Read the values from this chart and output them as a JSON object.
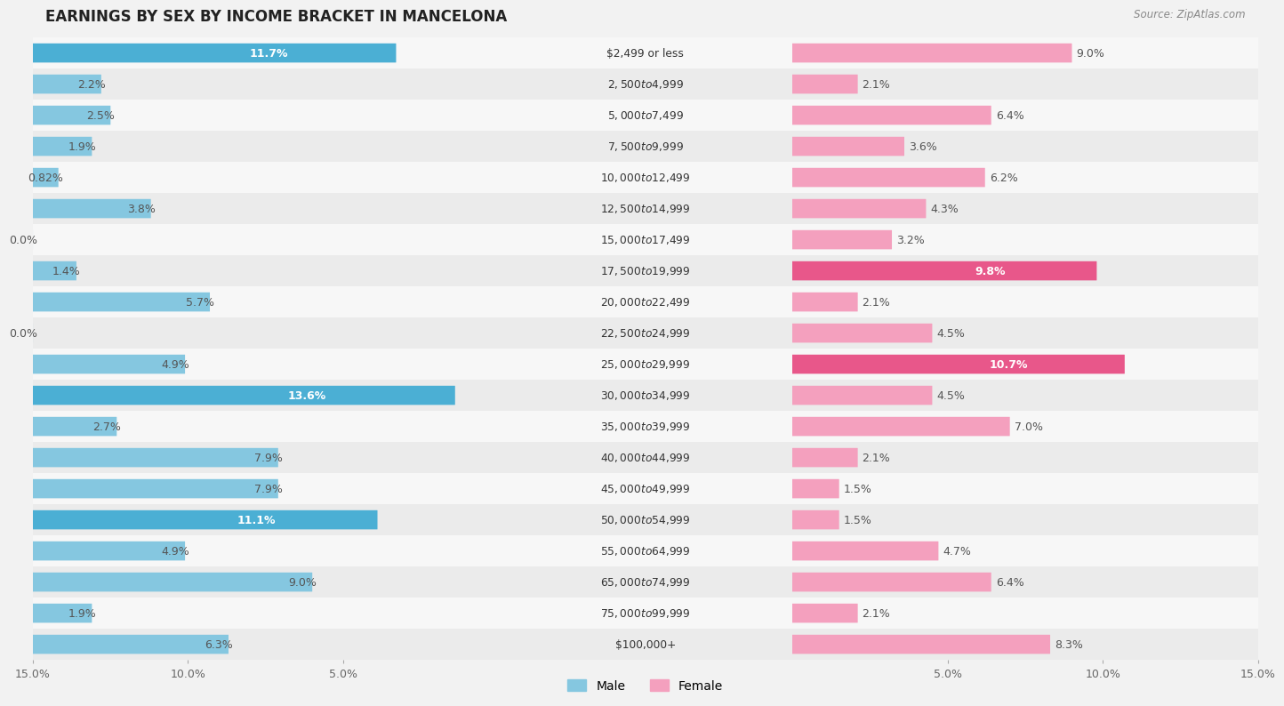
{
  "title": "EARNINGS BY SEX BY INCOME BRACKET IN MANCELONA",
  "source": "Source: ZipAtlas.com",
  "categories": [
    "$2,499 or less",
    "$2,500 to $4,999",
    "$5,000 to $7,499",
    "$7,500 to $9,999",
    "$10,000 to $12,499",
    "$12,500 to $14,999",
    "$15,000 to $17,499",
    "$17,500 to $19,999",
    "$20,000 to $22,499",
    "$22,500 to $24,999",
    "$25,000 to $29,999",
    "$30,000 to $34,999",
    "$35,000 to $39,999",
    "$40,000 to $44,999",
    "$45,000 to $49,999",
    "$50,000 to $54,999",
    "$55,000 to $64,999",
    "$65,000 to $74,999",
    "$75,000 to $99,999",
    "$100,000+"
  ],
  "male_values": [
    11.7,
    2.2,
    2.5,
    1.9,
    0.82,
    3.8,
    0.0,
    1.4,
    5.7,
    0.0,
    4.9,
    13.6,
    2.7,
    7.9,
    7.9,
    11.1,
    4.9,
    9.0,
    1.9,
    6.3
  ],
  "female_values": [
    9.0,
    2.1,
    6.4,
    3.6,
    6.2,
    4.3,
    3.2,
    9.8,
    2.1,
    4.5,
    10.7,
    4.5,
    7.0,
    2.1,
    1.5,
    1.5,
    4.7,
    6.4,
    2.1,
    8.3
  ],
  "male_color": "#85c7e0",
  "female_color": "#f4a0be",
  "male_highlight_color": "#4bafd4",
  "female_highlight_color": "#e8578a",
  "row_color_odd": "#ebebeb",
  "row_color_even": "#f7f7f7",
  "axis_limit": 15.0,
  "bar_height": 0.6,
  "label_fontsize": 9,
  "title_fontsize": 12,
  "tick_fontsize": 9,
  "male_label_inside_threshold": 10.0,
  "female_label_inside_threshold": 9.5
}
